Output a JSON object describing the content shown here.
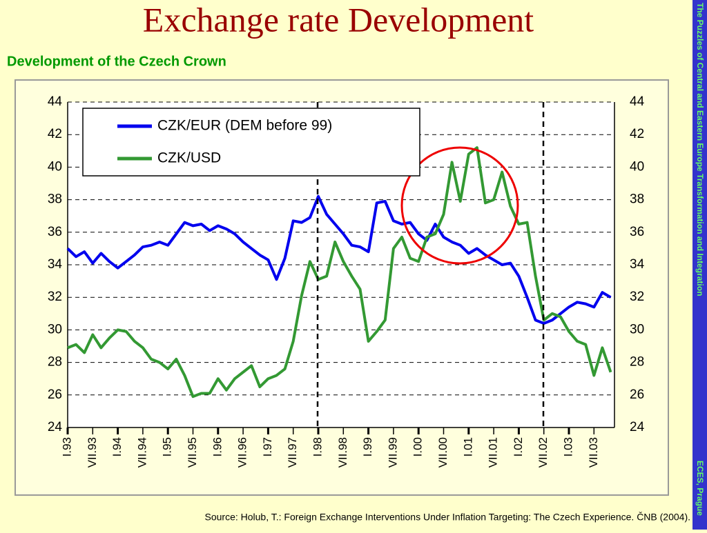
{
  "title": "Exchange rate Development",
  "subtitle": "Development of the Czech Crown",
  "sidebar_top": "The Puzzles of Central and Eastern Europe Transformation and Integration",
  "sidebar_bottom": "ECES, Prague",
  "source": "Source: Holub, T.: Foreign Exchange Interventions Under Inflation Targeting: The Czech Experience. ČNB (2004).",
  "chart_data": {
    "type": "line",
    "categories": [
      "I.93",
      null,
      null,
      "VII.93",
      null,
      null,
      "I.94",
      null,
      null,
      "VII.94",
      null,
      null,
      "I.95",
      null,
      null,
      "VII.95",
      null,
      null,
      "I.96",
      null,
      null,
      "VII.96",
      null,
      null,
      "I.97",
      null,
      null,
      "VII.97",
      null,
      null,
      "I.98",
      null,
      null,
      "VII.98",
      null,
      null,
      "I.99",
      null,
      null,
      "VII.99",
      null,
      null,
      "I.00",
      null,
      null,
      "VII.00",
      null,
      null,
      "I.01",
      null,
      null,
      "VII.01",
      null,
      null,
      "I.02",
      null,
      null,
      "VII.02",
      null,
      null,
      "I.03",
      null,
      null,
      "VII.03",
      null,
      null
    ],
    "series": [
      {
        "name": "CZK/EUR (DEM before 99)",
        "color": "#0000ee",
        "values": [
          35.0,
          34.5,
          34.8,
          34.1,
          34.7,
          34.2,
          33.8,
          34.2,
          34.6,
          35.1,
          35.2,
          35.4,
          35.2,
          35.9,
          36.6,
          36.4,
          36.5,
          36.1,
          36.4,
          36.2,
          35.9,
          35.4,
          35.0,
          34.6,
          34.3,
          33.1,
          34.4,
          36.7,
          36.6,
          36.9,
          38.2,
          37.1,
          36.5,
          35.9,
          35.2,
          35.1,
          34.8,
          37.8,
          37.9,
          36.7,
          36.5,
          36.6,
          35.9,
          35.5,
          36.5,
          35.7,
          35.4,
          35.2,
          34.7,
          35.0,
          34.6,
          34.3,
          34.0,
          34.1,
          33.3,
          32.0,
          30.6,
          30.4,
          30.6,
          31.0,
          31.4,
          31.7,
          31.6,
          31.4,
          32.3,
          32.0
        ]
      },
      {
        "name": "CZK/USD",
        "color": "#339933",
        "values": [
          28.9,
          29.1,
          28.6,
          29.7,
          28.9,
          29.5,
          30.0,
          29.9,
          29.3,
          28.9,
          28.2,
          28.0,
          27.6,
          28.2,
          27.2,
          25.9,
          26.1,
          26.1,
          27.0,
          26.3,
          27.0,
          27.4,
          27.8,
          26.5,
          27.0,
          27.2,
          27.6,
          29.3,
          32.1,
          34.2,
          33.1,
          33.3,
          35.4,
          34.2,
          33.3,
          32.5,
          29.3,
          29.9,
          30.6,
          35.0,
          35.7,
          34.4,
          34.2,
          35.7,
          35.9,
          37.1,
          40.3,
          37.9,
          40.8,
          41.2,
          37.8,
          38.0,
          39.7,
          37.6,
          36.5,
          36.6,
          33.3,
          30.6,
          31.0,
          30.8,
          29.9,
          29.3,
          29.1,
          27.2,
          28.9,
          27.4
        ]
      }
    ],
    "ylim": [
      24,
      44
    ],
    "yticks": [
      24,
      26,
      28,
      30,
      32,
      34,
      36,
      38,
      40,
      42,
      44
    ],
    "grid": true
  }
}
